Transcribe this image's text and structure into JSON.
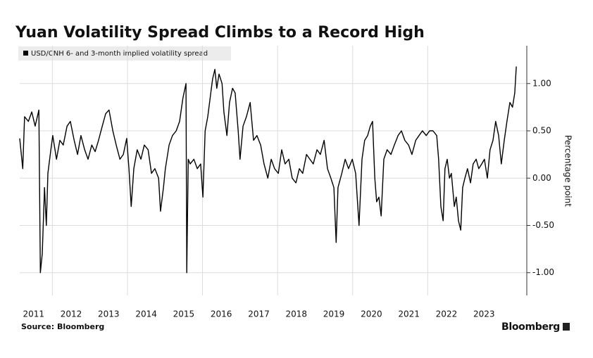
{
  "chart_data": {
    "type": "line",
    "title": "Yuan Volatility Spread Climbs to a Record High",
    "y_label": "Percentage point",
    "source": "Source: Bloomberg",
    "brand": "Bloomberg",
    "grid": true,
    "series": [
      {
        "name": "USD/CNH 6- and 3-month implied volatility spread",
        "color": "#000000",
        "x": [
          2011.13,
          2011.21,
          2011.26,
          2011.36,
          2011.45,
          2011.54,
          2011.64,
          2011.68,
          2011.73,
          2011.79,
          2011.84,
          2011.88,
          2011.96,
          2012.01,
          2012.11,
          2012.2,
          2012.29,
          2012.39,
          2012.48,
          2012.58,
          2012.67,
          2012.76,
          2012.86,
          2012.95,
          2013.05,
          2013.14,
          2013.23,
          2013.33,
          2013.42,
          2013.51,
          2013.61,
          2013.7,
          2013.8,
          2013.89,
          2013.98,
          2014.04,
          2014.1,
          2014.17,
          2014.26,
          2014.36,
          2014.45,
          2014.55,
          2014.64,
          2014.73,
          2014.83,
          2014.88,
          2014.96,
          2015.01,
          2015.11,
          2015.2,
          2015.3,
          2015.39,
          2015.48,
          2015.56,
          2015.58,
          2015.62,
          2015.67,
          2015.77,
          2015.86,
          2015.95,
          2016.01,
          2016.07,
          2016.14,
          2016.22,
          2016.27,
          2016.33,
          2016.38,
          2016.44,
          2016.52,
          2016.57,
          2016.65,
          2016.72,
          2016.8,
          2016.87,
          2016.95,
          2017.0,
          2017.08,
          2017.17,
          2017.27,
          2017.36,
          2017.45,
          2017.55,
          2017.64,
          2017.74,
          2017.83,
          2017.92,
          2018.02,
          2018.11,
          2018.2,
          2018.3,
          2018.39,
          2018.49,
          2018.58,
          2018.67,
          2018.77,
          2018.86,
          2018.95,
          2019.05,
          2019.14,
          2019.24,
          2019.33,
          2019.42,
          2019.5,
          2019.56,
          2019.61,
          2019.71,
          2019.8,
          2019.89,
          2019.99,
          2020.08,
          2020.17,
          2020.25,
          2020.32,
          2020.4,
          2020.47,
          2020.53,
          2020.59,
          2020.64,
          2020.7,
          2020.76,
          2020.83,
          2020.92,
          2021.02,
          2021.11,
          2021.21,
          2021.3,
          2021.39,
          2021.49,
          2021.58,
          2021.68,
          2021.77,
          2021.86,
          2021.96,
          2022.05,
          2022.14,
          2022.24,
          2022.29,
          2022.35,
          2022.41,
          2022.46,
          2022.52,
          2022.58,
          2022.63,
          2022.71,
          2022.76,
          2022.82,
          2022.88,
          2022.93,
          2022.99,
          2023.06,
          2023.14,
          2023.21,
          2023.29,
          2023.36,
          2023.44,
          2023.51,
          2023.59,
          2023.66,
          2023.74,
          2023.81,
          2023.89,
          2023.96,
          2024.04,
          2024.11,
          2024.19,
          2024.26,
          2024.32,
          2024.36
        ],
        "values": [
          0.42,
          0.1,
          0.65,
          0.6,
          0.7,
          0.55,
          0.72,
          -1.0,
          -0.8,
          -0.1,
          -0.5,
          0.05,
          0.3,
          0.45,
          0.2,
          0.4,
          0.35,
          0.55,
          0.6,
          0.4,
          0.25,
          0.45,
          0.3,
          0.2,
          0.35,
          0.28,
          0.4,
          0.55,
          0.68,
          0.72,
          0.5,
          0.35,
          0.2,
          0.25,
          0.42,
          0.1,
          -0.3,
          0.1,
          0.3,
          0.2,
          0.35,
          0.3,
          0.05,
          0.1,
          0.0,
          -0.35,
          -0.1,
          0.1,
          0.35,
          0.45,
          0.5,
          0.6,
          0.85,
          1.0,
          -1.0,
          0.2,
          0.15,
          0.2,
          0.1,
          0.15,
          -0.2,
          0.5,
          0.65,
          0.9,
          1.05,
          1.15,
          0.95,
          1.1,
          1.0,
          0.7,
          0.45,
          0.8,
          0.95,
          0.9,
          0.5,
          0.2,
          0.55,
          0.65,
          0.8,
          0.4,
          0.45,
          0.35,
          0.15,
          0.0,
          0.2,
          0.1,
          0.05,
          0.3,
          0.15,
          0.2,
          0.0,
          -0.05,
          0.1,
          0.05,
          0.25,
          0.2,
          0.15,
          0.3,
          0.25,
          0.4,
          0.1,
          0.0,
          -0.1,
          -0.68,
          -0.1,
          0.05,
          0.2,
          0.1,
          0.2,
          0.05,
          -0.5,
          0.2,
          0.4,
          0.45,
          0.55,
          0.6,
          0.0,
          -0.25,
          -0.2,
          -0.4,
          0.2,
          0.3,
          0.25,
          0.35,
          0.45,
          0.5,
          0.4,
          0.35,
          0.25,
          0.4,
          0.45,
          0.5,
          0.45,
          0.5,
          0.5,
          0.45,
          0.2,
          -0.3,
          -0.45,
          0.1,
          0.2,
          0.0,
          0.05,
          -0.3,
          -0.2,
          -0.45,
          -0.55,
          -0.1,
          0.0,
          0.1,
          -0.05,
          0.15,
          0.2,
          0.1,
          0.15,
          0.2,
          0.0,
          0.3,
          0.4,
          0.6,
          0.45,
          0.15,
          0.4,
          0.6,
          0.8,
          0.75,
          0.9,
          1.18
        ]
      }
    ],
    "xlim": [
      2011.13,
      2024.64
    ],
    "xticks": [
      2011,
      2012,
      2013,
      2014,
      2015,
      2016,
      2017,
      2018,
      2019,
      2020,
      2021,
      2022,
      2023
    ],
    "ylim": [
      -1.24,
      1.4
    ],
    "yticks": [
      {
        "value": 1,
        "label": "1.00"
      },
      {
        "value": 0.5,
        "label": "0.50"
      },
      {
        "value": 0,
        "label": "0.00"
      },
      {
        "value": -0.5,
        "label": "-0.50"
      },
      {
        "value": -1,
        "label": "-1.00"
      }
    ]
  }
}
